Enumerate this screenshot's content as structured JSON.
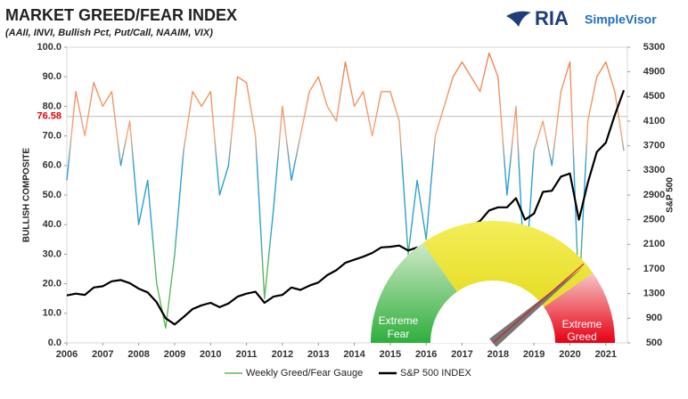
{
  "logo": {
    "mark": "RIA",
    "name": "SimpleVisor"
  },
  "chart_data": {
    "type": "line",
    "title": "MARKET GREED/FEAR INDEX",
    "subtitle": "(AAII, INVI, Bullish Pct, Put/Call, NAAIM, VIX)",
    "y_label": "BULLISH COMPOSITE",
    "y2_label": "S&P 500",
    "x": [
      2006.0,
      2006.25,
      2006.5,
      2006.75,
      2007.0,
      2007.25,
      2007.5,
      2007.75,
      2008.0,
      2008.25,
      2008.5,
      2008.75,
      2009.0,
      2009.25,
      2009.5,
      2009.75,
      2010.0,
      2010.25,
      2010.5,
      2010.75,
      2011.0,
      2011.25,
      2011.5,
      2011.75,
      2012.0,
      2012.25,
      2012.5,
      2012.75,
      2013.0,
      2013.25,
      2013.5,
      2013.75,
      2014.0,
      2014.25,
      2014.5,
      2014.75,
      2015.0,
      2015.25,
      2015.5,
      2015.75,
      2016.0,
      2016.25,
      2016.5,
      2016.75,
      2017.0,
      2017.25,
      2017.5,
      2017.75,
      2018.0,
      2018.25,
      2018.5,
      2018.75,
      2019.0,
      2019.25,
      2019.5,
      2019.75,
      2020.0,
      2020.25,
      2020.5,
      2020.75,
      2021.0,
      2021.25,
      2021.5
    ],
    "xlim": [
      2006,
      2021.6
    ],
    "xticks": [
      2006,
      2007,
      2008,
      2009,
      2010,
      2011,
      2012,
      2013,
      2014,
      2015,
      2016,
      2017,
      2018,
      2019,
      2020,
      2021
    ],
    "ylim": [
      0,
      100
    ],
    "yticks": [
      {
        "value": 0,
        "label": "0.0"
      },
      {
        "value": 10,
        "label": "10.0"
      },
      {
        "value": 20,
        "label": "20.0"
      },
      {
        "value": 30,
        "label": "30.0"
      },
      {
        "value": 40,
        "label": "40.0"
      },
      {
        "value": 50,
        "label": "50.0"
      },
      {
        "value": 60,
        "label": "60.0"
      },
      {
        "value": 70,
        "label": "70.0"
      },
      {
        "value": 80,
        "label": "80.0"
      },
      {
        "value": 90,
        "label": "90.0"
      },
      {
        "value": 100,
        "label": "100.0"
      }
    ],
    "y2lim": [
      500,
      5300
    ],
    "y2ticks": [
      500,
      900,
      1300,
      1700,
      2100,
      2500,
      2900,
      3300,
      3700,
      4100,
      4500,
      4900,
      5300
    ],
    "hline": {
      "value": 76.58,
      "color": "#e00000"
    },
    "gradient": [
      {
        "value": 25,
        "color": "#5cb85c"
      },
      {
        "value": 40,
        "color": "#2aa0d0"
      },
      {
        "value": 60,
        "color": "#2aa0d0"
      },
      {
        "value": 70,
        "color": "#f4a57a"
      },
      {
        "value": 100,
        "color": "#e8804a"
      }
    ],
    "series": [
      {
        "name": "Weekly Greed/Fear Gauge",
        "color": "#5cb85c",
        "values": [
          55,
          85,
          70,
          88,
          80,
          85,
          60,
          75,
          40,
          55,
          20,
          5,
          30,
          65,
          85,
          80,
          85,
          50,
          60,
          90,
          88,
          70,
          15,
          45,
          80,
          55,
          70,
          85,
          90,
          80,
          75,
          95,
          80,
          85,
          70,
          85,
          85,
          75,
          30,
          55,
          35,
          70,
          80,
          90,
          95,
          90,
          85,
          98,
          90,
          50,
          80,
          20,
          65,
          75,
          60,
          85,
          95,
          15,
          75,
          90,
          95,
          85,
          65
        ]
      },
      {
        "name": "S&P 500 INDEX",
        "color": "#000000",
        "axis": "y2",
        "values": [
          1270,
          1300,
          1280,
          1400,
          1420,
          1500,
          1520,
          1470,
          1380,
          1320,
          1160,
          900,
          800,
          920,
          1050,
          1110,
          1150,
          1080,
          1140,
          1250,
          1300,
          1330,
          1150,
          1250,
          1280,
          1400,
          1360,
          1430,
          1480,
          1600,
          1680,
          1800,
          1850,
          1900,
          1960,
          2050,
          2060,
          2080,
          2000,
          2050,
          1940,
          2070,
          2160,
          2240,
          2280,
          2400,
          2480,
          2650,
          2700,
          2700,
          2850,
          2500,
          2600,
          2950,
          2970,
          3200,
          3250,
          2500,
          3100,
          3600,
          3750,
          4200,
          4600
        ]
      }
    ],
    "gauge": {
      "fear": [
        "Extreme",
        "Fear"
      ],
      "greed": [
        "Extreme",
        "Greed"
      ]
    }
  }
}
